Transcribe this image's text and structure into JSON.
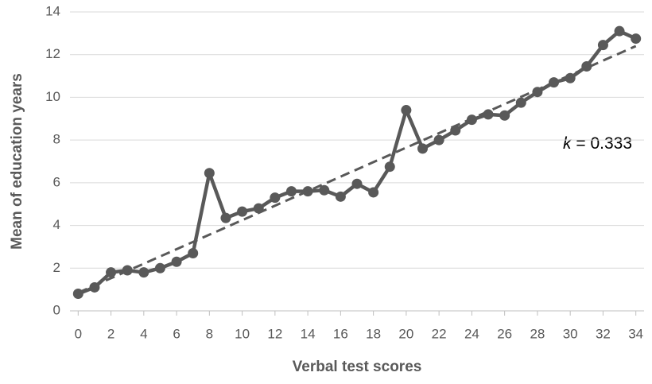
{
  "chart_data": {
    "type": "line",
    "x_label": "Verbal test scores",
    "y_label": "Mean of education years",
    "annotation_symbol": "k",
    "annotation_text": "= 0.333",
    "x": [
      0,
      1,
      2,
      3,
      4,
      5,
      6,
      7,
      8,
      9,
      10,
      11,
      12,
      13,
      14,
      15,
      16,
      17,
      18,
      19,
      20,
      21,
      22,
      23,
      24,
      25,
      26,
      27,
      28,
      29,
      30,
      31,
      32,
      33,
      34
    ],
    "series": [
      {
        "color": "#595959",
        "style": "solid",
        "markers": true,
        "values": [
          0.8,
          1.1,
          1.8,
          1.9,
          1.8,
          2.0,
          2.3,
          2.7,
          6.45,
          4.35,
          4.65,
          4.8,
          5.3,
          5.6,
          5.6,
          5.65,
          5.35,
          5.95,
          5.55,
          6.75,
          9.4,
          7.6,
          8.0,
          8.45,
          8.95,
          9.2,
          9.15,
          9.75,
          10.25,
          10.7,
          10.9,
          11.45,
          12.45,
          13.1,
          12.75
        ]
      },
      {
        "color": "#595959",
        "style": "dashed",
        "markers": false,
        "x": [
          0,
          34
        ],
        "values": [
          0.85,
          12.4
        ]
      }
    ],
    "xlim": [
      -0.5,
      34.5
    ],
    "xticks": [
      0,
      2,
      4,
      6,
      8,
      10,
      12,
      14,
      16,
      18,
      20,
      22,
      24,
      26,
      28,
      30,
      32,
      34
    ],
    "ylim": [
      0,
      14
    ],
    "yticks": [
      0,
      2,
      4,
      6,
      8,
      10,
      12,
      14
    ],
    "grid": true
  }
}
